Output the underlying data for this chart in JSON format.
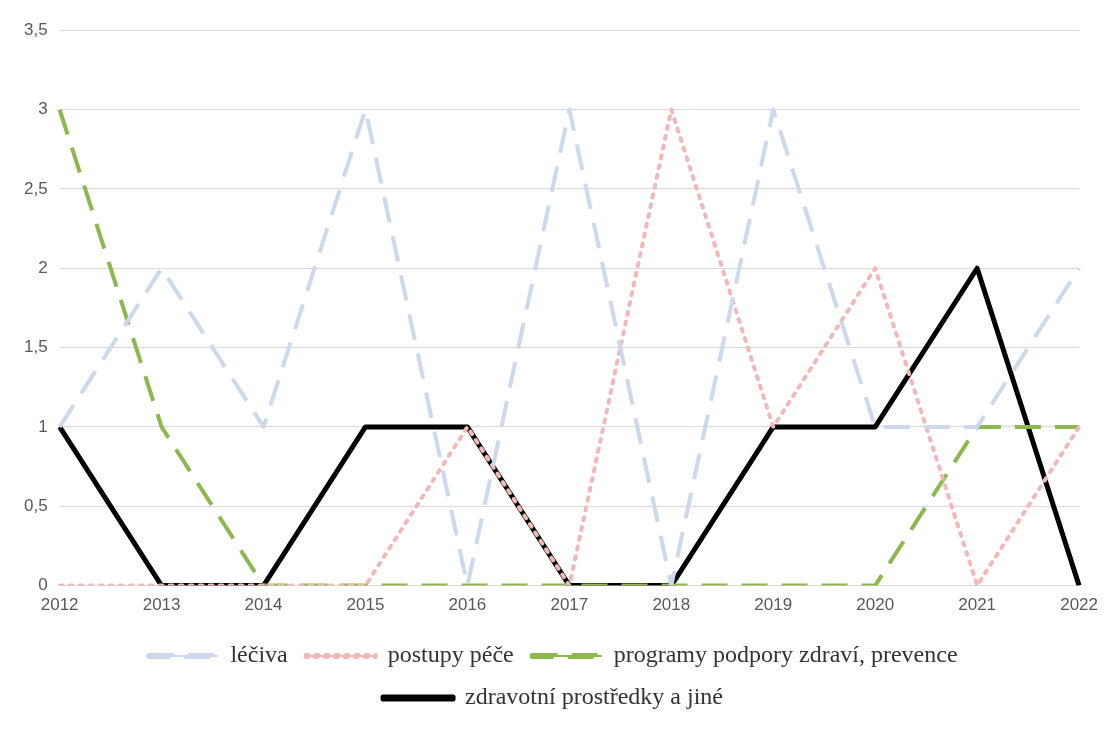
{
  "chart_data": {
    "type": "line",
    "categories": [
      "2012",
      "2013",
      "2014",
      "2015",
      "2016",
      "2017",
      "2018",
      "2019",
      "2020",
      "2021",
      "2022"
    ],
    "series": [
      {
        "name": "léčiva",
        "color": "#ccd9ec",
        "line_style": "dashed",
        "values": [
          1,
          2,
          1,
          3,
          0,
          3,
          0,
          3,
          1,
          1,
          2
        ]
      },
      {
        "name": "postupy péče",
        "color": "#f2b8b8",
        "line_style": "dotted",
        "values": [
          0,
          0,
          0,
          0,
          1,
          0,
          3,
          1,
          2,
          0,
          1
        ]
      },
      {
        "name": "programy podpory zdraví, prevence",
        "color": "#8cb84e",
        "line_style": "dashed",
        "values": [
          3,
          1,
          0,
          0,
          0,
          0,
          0,
          0,
          0,
          1,
          1
        ]
      },
      {
        "name": "zdravotní prostředky a jiné",
        "color": "#000000",
        "line_style": "solid",
        "values": [
          1,
          0,
          0,
          1,
          1,
          0,
          0,
          1,
          1,
          2,
          0
        ]
      }
    ],
    "ylim": [
      0,
      3.5
    ],
    "yticks": [
      0,
      {
        "value": 0.5,
        "label": "0,5"
      },
      1,
      {
        "value": 1.5,
        "label": "1,5"
      },
      2,
      {
        "value": 2.5,
        "label": "2,5"
      },
      3,
      {
        "value": 3.5,
        "label": "3,5"
      }
    ],
    "grid": "y",
    "legend": "bottom",
    "marker": "none"
  }
}
